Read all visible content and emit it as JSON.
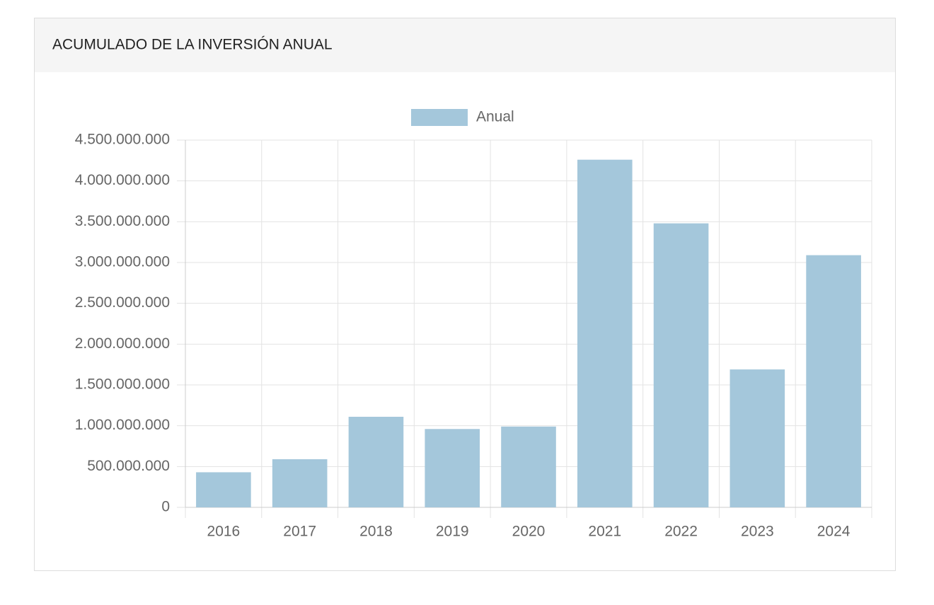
{
  "chart_data": {
    "type": "bar",
    "title": "ACUMULADO DE LA INVERSIÓN ANUAL",
    "categories": [
      "2016",
      "2017",
      "2018",
      "2019",
      "2020",
      "2021",
      "2022",
      "2023",
      "2024"
    ],
    "series": [
      {
        "name": "Anual",
        "color": "#a4c7db",
        "values": [
          430000000,
          590000000,
          1110000000,
          960000000,
          990000000,
          4260000000,
          3480000000,
          1690000000,
          3090000000
        ]
      }
    ],
    "ylim": [
      0,
      4500000000
    ],
    "yticks": [
      0,
      {
        "value": 500000000,
        "label": "500.000.000"
      },
      {
        "value": 1000000000,
        "label": "1.000.000.000"
      },
      {
        "value": 1500000000,
        "label": "1.500.000.000"
      },
      {
        "value": 2000000000,
        "label": "2.000.000.000"
      },
      {
        "value": 2500000000,
        "label": "2.500.000.000"
      },
      {
        "value": 3000000000,
        "label": "3.000.000.000"
      },
      {
        "value": 3500000000,
        "label": "3.500.000.000"
      },
      {
        "value": 4000000000,
        "label": "4.000.000.000"
      },
      {
        "value": 4500000000,
        "label": "4.500.000.000"
      }
    ],
    "grid": true,
    "legend": "top"
  }
}
